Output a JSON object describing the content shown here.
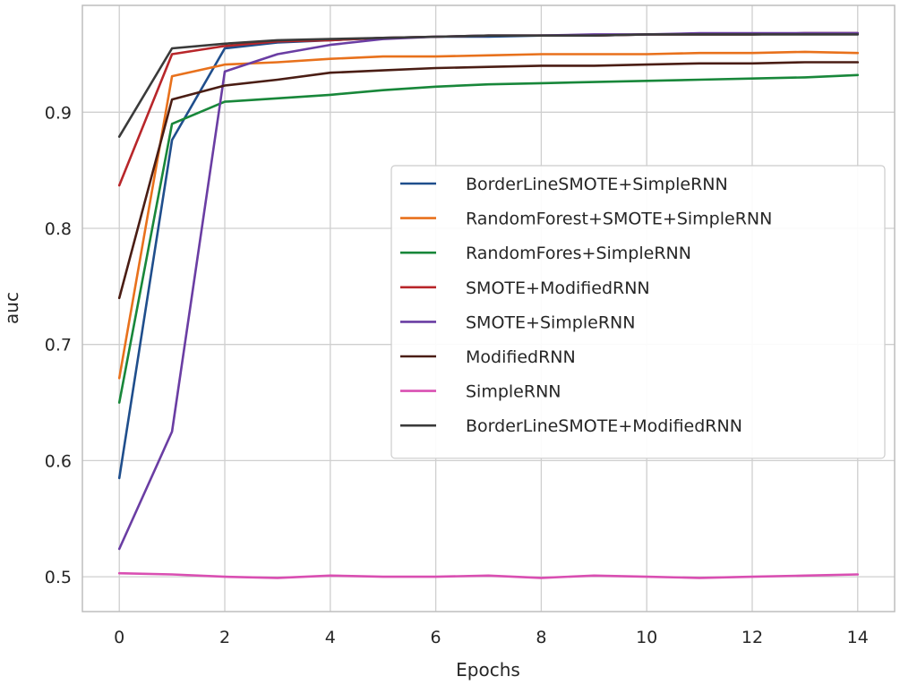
{
  "chart_data": {
    "type": "line",
    "title": "",
    "xlabel": "Epochs",
    "ylabel": "auc",
    "xlim": [
      -0.7,
      14.7
    ],
    "ylim": [
      0.47,
      0.992
    ],
    "xticks": [
      0,
      2,
      4,
      6,
      8,
      10,
      12,
      14
    ],
    "yticks": [
      0.5,
      0.6,
      0.7,
      0.8,
      0.9
    ],
    "ytick_labels": [
      "0.5",
      "0.6",
      "0.7",
      "0.8",
      "0.9"
    ],
    "grid": true,
    "legend_position": "center-right",
    "x": [
      0,
      1,
      2,
      3,
      4,
      5,
      6,
      7,
      8,
      9,
      10,
      11,
      12,
      13,
      14
    ],
    "series": [
      {
        "name": "BorderLineSMOTE+SimpleRNN",
        "color": "#1f4e8c",
        "values": [
          0.585,
          0.876,
          0.955,
          0.96,
          0.962,
          0.964,
          0.965,
          0.965,
          0.966,
          0.966,
          0.967,
          0.967,
          0.967,
          0.968,
          0.968
        ]
      },
      {
        "name": "RandomForest+SMOTE+SimpleRNN",
        "color": "#e8711c",
        "values": [
          0.671,
          0.931,
          0.941,
          0.943,
          0.946,
          0.948,
          0.948,
          0.949,
          0.95,
          0.95,
          0.95,
          0.951,
          0.951,
          0.952,
          0.951
        ]
      },
      {
        "name": "RandomFores+SimpleRNN",
        "color": "#18873a",
        "values": [
          0.65,
          0.89,
          0.909,
          0.912,
          0.915,
          0.919,
          0.922,
          0.924,
          0.925,
          0.926,
          0.927,
          0.928,
          0.929,
          0.93,
          0.932
        ]
      },
      {
        "name": "SMOTE+ModifiedRNN",
        "color": "#b8262a",
        "values": [
          0.837,
          0.95,
          0.957,
          0.961,
          0.962,
          0.964,
          0.965,
          0.966,
          0.966,
          0.966,
          0.967,
          0.967,
          0.967,
          0.968,
          0.968
        ]
      },
      {
        "name": "SMOTE+SimpleRNN",
        "color": "#6a3da3",
        "values": [
          0.524,
          0.625,
          0.935,
          0.95,
          0.958,
          0.963,
          0.965,
          0.966,
          0.966,
          0.967,
          0.967,
          0.968,
          0.968,
          0.968,
          0.968
        ]
      },
      {
        "name": "ModifiedRNN",
        "color": "#4a1d14",
        "values": [
          0.74,
          0.911,
          0.923,
          0.928,
          0.934,
          0.936,
          0.938,
          0.939,
          0.94,
          0.94,
          0.941,
          0.942,
          0.942,
          0.943,
          0.943
        ]
      },
      {
        "name": "SimpleRNN",
        "color": "#d94fb2",
        "values": [
          0.503,
          0.502,
          0.5,
          0.499,
          0.501,
          0.5,
          0.5,
          0.501,
          0.499,
          0.501,
          0.5,
          0.499,
          0.5,
          0.501,
          0.502
        ]
      },
      {
        "name": "BorderLineSMOTE+ModifiedRNN",
        "color": "#3a3a3a",
        "values": [
          0.879,
          0.955,
          0.959,
          0.962,
          0.963,
          0.964,
          0.965,
          0.966,
          0.966,
          0.966,
          0.967,
          0.967,
          0.967,
          0.967,
          0.967
        ]
      }
    ]
  }
}
